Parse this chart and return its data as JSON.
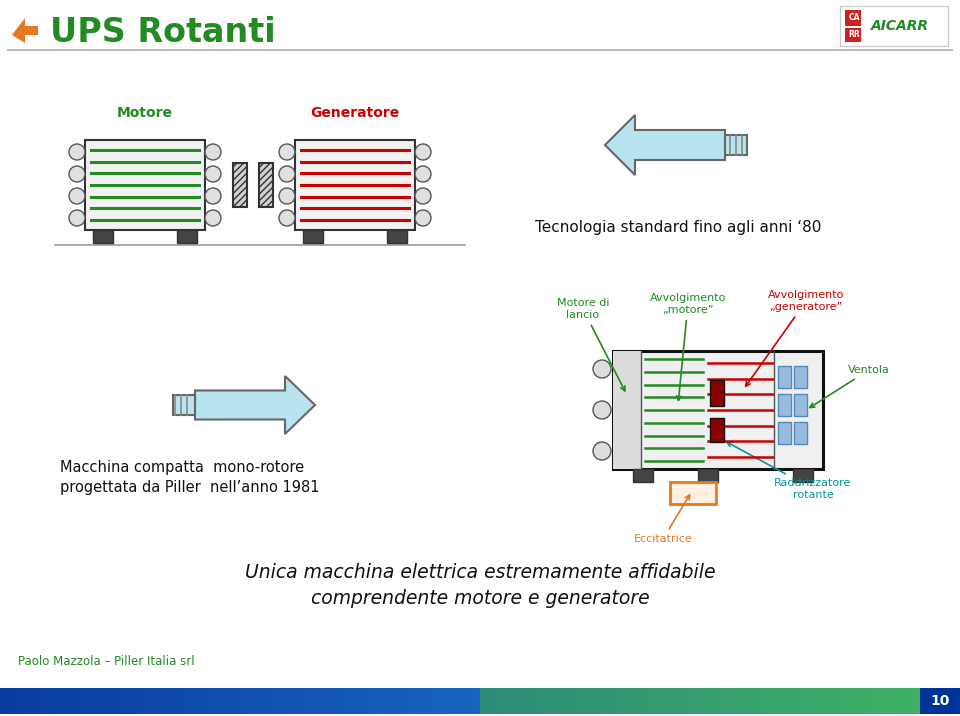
{
  "title": "UPS Rotanti",
  "title_color": "#228B22",
  "title_arrow_color": "#E87722",
  "bg_color": "#FFFFFF",
  "header_line_color": "#AAAAAA",
  "footer_text": "Paolo Mazzola – Piller Italia srl",
  "footer_text_color": "#228B22",
  "page_number": "10",
  "label_motore": "Motore",
  "label_generatore": "Generatore",
  "label_motore_color": "#228B22",
  "label_generatore_color": "#CC0000",
  "text_tecnologia": "Tecnologia standard fino agli anni ‘80",
  "text_macchina1": "Macchina compatta  mono-rotore",
  "text_macchina2": "progettata da Piller  nell’anno 1981",
  "label_motore_di_lancio": "Motore di\nlancio",
  "label_avv_motore": "Avvolgimento\n„motore”",
  "label_avv_generatore": "Avvolgimento\n„generatore”",
  "label_ventola": "Ventola",
  "label_eccitatrice": "Eccitatrice",
  "label_raddrizzatore": "Raddrizzatore\nrotante",
  "label_color_green": "#228B22",
  "label_color_red": "#CC0000",
  "label_color_cyan": "#009999",
  "label_color_orange": "#E87722",
  "text_unica1": "Unica macchina elettrica estremamente affidabile",
  "text_unica2": "comprendente motore e generatore",
  "text_unica_color": "#111111"
}
